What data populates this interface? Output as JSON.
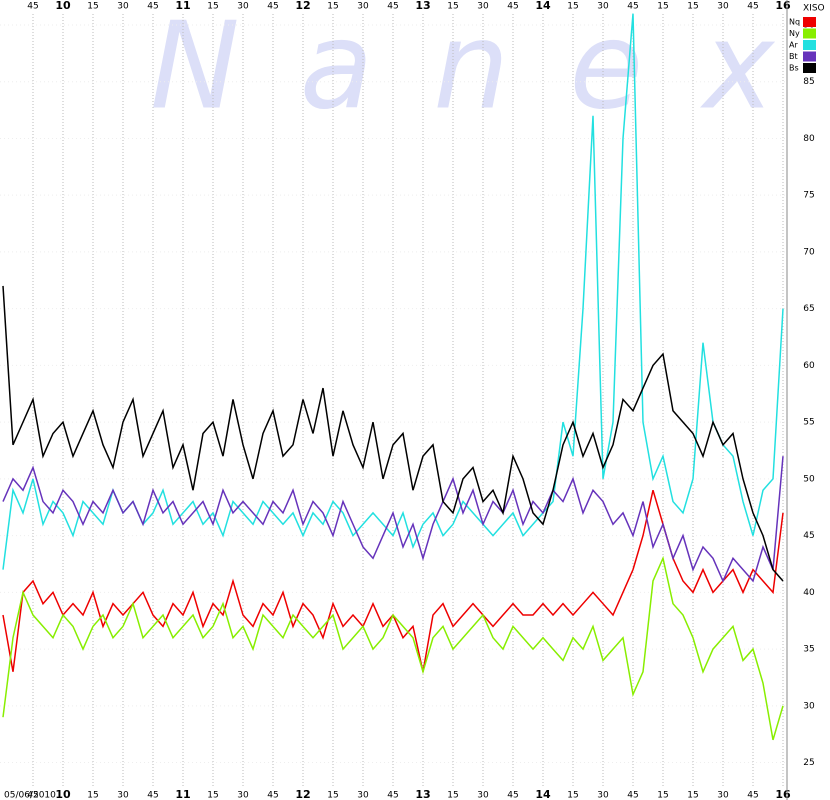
{
  "chart_data": {
    "type": "line",
    "symbol": "XISO",
    "watermark": "Nanex",
    "date": "05/06/2010",
    "x": [
      570,
      575,
      580,
      585,
      590,
      595,
      600,
      605,
      610,
      615,
      620,
      625,
      630,
      635,
      640,
      645,
      650,
      655,
      660,
      665,
      670,
      675,
      680,
      685,
      690,
      695,
      700,
      705,
      710,
      715,
      720,
      725,
      730,
      735,
      740,
      745,
      750,
      755,
      760,
      765,
      770,
      775,
      780,
      785,
      790,
      795,
      800,
      805,
      810,
      815,
      820,
      825,
      830,
      835,
      840,
      845,
      850,
      855,
      860,
      865,
      870,
      875,
      880,
      885,
      890,
      895,
      900,
      905,
      910,
      915,
      920,
      925,
      930,
      935,
      940,
      945,
      950,
      955,
      960
    ],
    "xlim": [
      568.5,
      962
    ],
    "xticks": [
      {
        "value": 585,
        "label": "45"
      },
      {
        "value": 600,
        "label": "10"
      },
      {
        "value": 615,
        "label": "15"
      },
      {
        "value": 630,
        "label": "30"
      },
      {
        "value": 645,
        "label": "45"
      },
      {
        "value": 660,
        "label": "11"
      },
      {
        "value": 675,
        "label": "15"
      },
      {
        "value": 690,
        "label": "30"
      },
      {
        "value": 705,
        "label": "45"
      },
      {
        "value": 720,
        "label": "12"
      },
      {
        "value": 735,
        "label": "15"
      },
      {
        "value": 750,
        "label": "30"
      },
      {
        "value": 765,
        "label": "45"
      },
      {
        "value": 780,
        "label": "13"
      },
      {
        "value": 795,
        "label": "15"
      },
      {
        "value": 810,
        "label": "30"
      },
      {
        "value": 825,
        "label": "45"
      },
      {
        "value": 840,
        "label": "14"
      },
      {
        "value": 855,
        "label": "15"
      },
      {
        "value": 870,
        "label": "30"
      },
      {
        "value": 885,
        "label": "45"
      },
      {
        "value": 900,
        "label": "15"
      },
      {
        "value": 915,
        "label": "15"
      },
      {
        "value": 930,
        "label": "30"
      },
      {
        "value": 945,
        "label": "45"
      },
      {
        "value": 960,
        "label": "16"
      }
    ],
    "ylim": [
      21.7,
      92.2
    ],
    "yticks": [
      25,
      30,
      35,
      40,
      45,
      50,
      55,
      60,
      65,
      70,
      75,
      80,
      85,
      90
    ],
    "grid": true,
    "legend": "top-right",
    "series": [
      {
        "name": "Nq",
        "color": "#ee0000",
        "values": [
          38,
          33,
          40,
          41,
          39,
          40,
          38,
          39,
          38,
          40,
          37,
          39,
          38,
          39,
          40,
          38,
          37,
          39,
          38,
          40,
          37,
          39,
          38,
          41,
          38,
          37,
          39,
          38,
          40,
          37,
          39,
          38,
          36,
          39,
          37,
          38,
          37,
          39,
          37,
          38,
          36,
          37,
          33,
          38,
          39,
          37,
          38,
          39,
          38,
          37,
          38,
          39,
          38,
          38,
          39,
          38,
          39,
          38,
          39,
          40,
          39,
          38,
          40,
          42,
          45,
          49,
          46,
          43,
          41,
          40,
          42,
          40,
          41,
          42,
          40,
          42,
          41,
          40,
          47
        ]
      },
      {
        "name": "Ny",
        "color": "#88ee00",
        "values": [
          29,
          36,
          40,
          38,
          37,
          36,
          38,
          37,
          35,
          37,
          38,
          36,
          37,
          39,
          36,
          37,
          38,
          36,
          37,
          38,
          36,
          37,
          39,
          36,
          37,
          35,
          38,
          37,
          36,
          38,
          37,
          36,
          37,
          38,
          35,
          36,
          37,
          35,
          36,
          38,
          37,
          36,
          33,
          36,
          37,
          35,
          36,
          37,
          38,
          36,
          35,
          37,
          36,
          35,
          36,
          35,
          34,
          36,
          35,
          37,
          34,
          35,
          36,
          31,
          33,
          41,
          43,
          39,
          38,
          36,
          33,
          35,
          36,
          37,
          34,
          35,
          32,
          27,
          30
        ]
      },
      {
        "name": "Ar",
        "color": "#22e0e0",
        "values": [
          42,
          49,
          47,
          50,
          46,
          48,
          47,
          45,
          48,
          47,
          46,
          49,
          47,
          48,
          46,
          47,
          49,
          46,
          47,
          48,
          46,
          47,
          45,
          48,
          47,
          46,
          48,
          47,
          46,
          47,
          45,
          47,
          46,
          48,
          47,
          45,
          46,
          47,
          46,
          45,
          47,
          44,
          46,
          47,
          45,
          46,
          48,
          47,
          46,
          45,
          46,
          47,
          45,
          46,
          47,
          48,
          55,
          52,
          65,
          82,
          50,
          55,
          80,
          91,
          55,
          50,
          52,
          48,
          47,
          50,
          62,
          55,
          53,
          52,
          48,
          45,
          49,
          50,
          65
        ]
      },
      {
        "name": "Bt",
        "color": "#6633bb",
        "values": [
          48,
          50,
          49,
          51,
          48,
          47,
          49,
          48,
          46,
          48,
          47,
          49,
          47,
          48,
          46,
          49,
          47,
          48,
          46,
          47,
          48,
          46,
          49,
          47,
          48,
          47,
          46,
          48,
          47,
          49,
          46,
          48,
          47,
          45,
          48,
          46,
          44,
          43,
          45,
          47,
          44,
          46,
          43,
          46,
          48,
          50,
          47,
          49,
          46,
          48,
          47,
          49,
          46,
          48,
          47,
          49,
          48,
          50,
          47,
          49,
          48,
          46,
          47,
          45,
          48,
          44,
          46,
          43,
          45,
          42,
          44,
          43,
          41,
          43,
          42,
          41,
          44,
          42,
          52
        ]
      },
      {
        "name": "Bs",
        "color": "#000000",
        "values": [
          67,
          53,
          55,
          57,
          52,
          54,
          55,
          52,
          54,
          56,
          53,
          51,
          55,
          57,
          52,
          54,
          56,
          51,
          53,
          49,
          54,
          55,
          52,
          57,
          53,
          50,
          54,
          56,
          52,
          53,
          57,
          54,
          58,
          52,
          56,
          53,
          51,
          55,
          50,
          53,
          54,
          49,
          52,
          53,
          48,
          47,
          50,
          51,
          48,
          49,
          47,
          52,
          50,
          47,
          46,
          49,
          53,
          55,
          52,
          54,
          51,
          53,
          57,
          56,
          58,
          60,
          61,
          56,
          55,
          54,
          52,
          55,
          53,
          54,
          50,
          47,
          45,
          42,
          41
        ]
      }
    ]
  }
}
